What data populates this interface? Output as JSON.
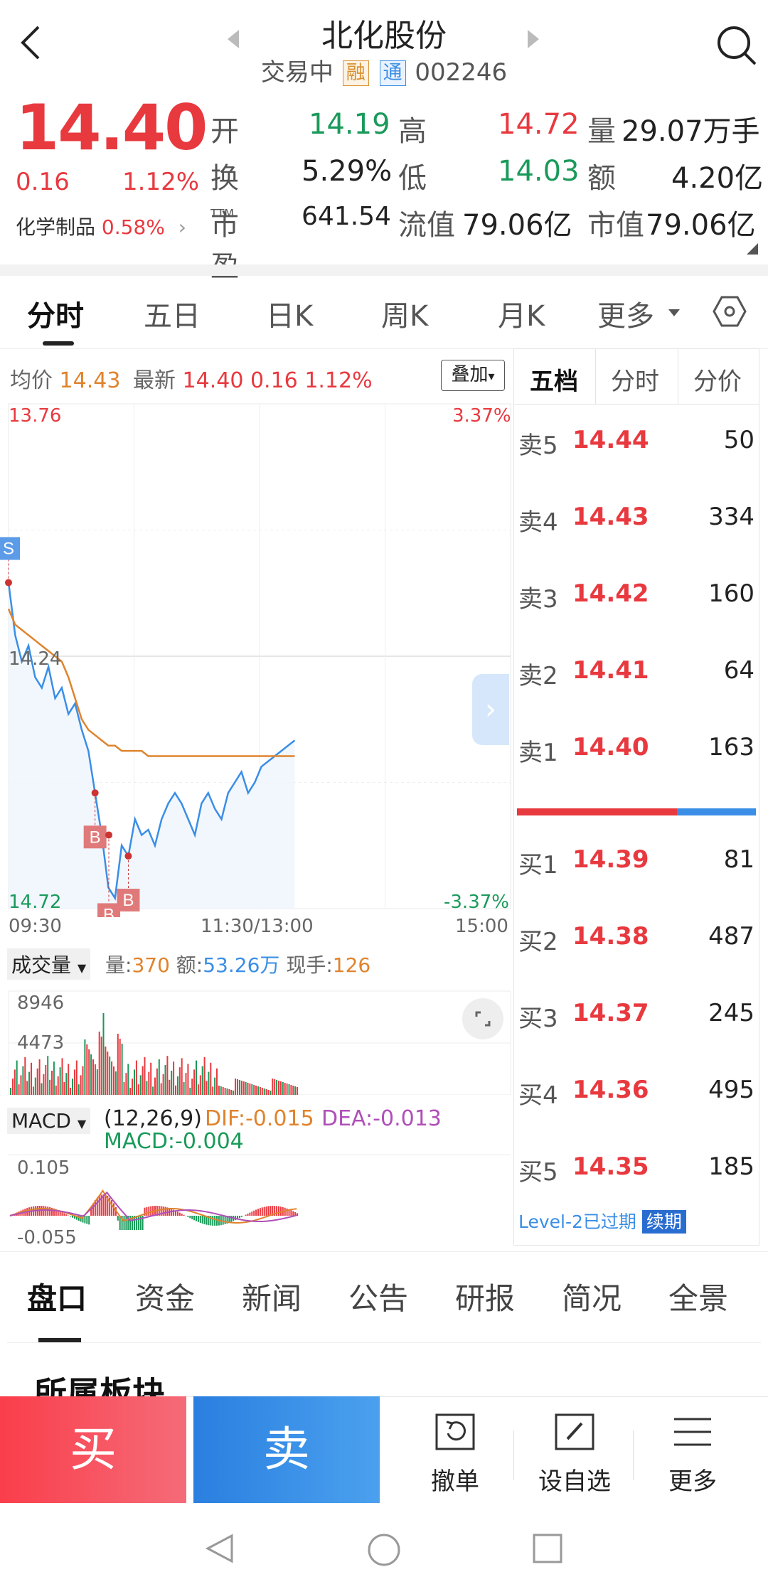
{
  "header": {
    "title": "北化股份",
    "status": "交易中",
    "tag1": "融",
    "tag2": "通",
    "code": "002246"
  },
  "quote": {
    "price": "14.40",
    "change": "0.16",
    "change_pct": "1.12%",
    "sector": "化学制品",
    "sector_pct": "0.58%",
    "open_label": "开",
    "open": "14.19",
    "high_label": "高",
    "high": "14.72",
    "vol_label": "量",
    "vol": "29.07万手",
    "turn_label": "换",
    "turn": "5.29%",
    "low_label": "低",
    "low": "14.03",
    "amt_label": "额",
    "amt": "4.20亿",
    "pe_label": "市盈",
    "pe_sup": "TTM",
    "pe": "641.54",
    "float_label": "流值",
    "float": "79.06亿",
    "cap_label": "市值",
    "cap": "79.06亿"
  },
  "tabs": [
    "分时",
    "五日",
    "日K",
    "周K",
    "月K",
    "更多"
  ],
  "chart_info": {
    "avg_label": "均价",
    "avg": "14.43",
    "last_label": "最新",
    "last": "14.40",
    "chg": "0.16",
    "pct": "1.12%",
    "overlay": "叠加"
  },
  "orderbook": {
    "tabs": [
      "五档",
      "分时",
      "分价"
    ],
    "sells": [
      {
        "label": "卖5",
        "price": "14.44",
        "qty": "50"
      },
      {
        "label": "卖4",
        "price": "14.43",
        "qty": "334"
      },
      {
        "label": "卖3",
        "price": "14.42",
        "qty": "160"
      },
      {
        "label": "卖2",
        "price": "14.41",
        "qty": "64"
      },
      {
        "label": "卖1",
        "price": "14.40",
        "qty": "163"
      }
    ],
    "buys": [
      {
        "label": "买1",
        "price": "14.39",
        "qty": "81"
      },
      {
        "label": "买2",
        "price": "14.38",
        "qty": "487"
      },
      {
        "label": "买3",
        "price": "14.37",
        "qty": "245"
      },
      {
        "label": "买4",
        "price": "14.36",
        "qty": "495"
      },
      {
        "label": "买5",
        "price": "14.35",
        "qty": "185"
      }
    ],
    "buy_ratio": 0.67,
    "level2": "Level-2已过期",
    "renew": "续期"
  },
  "vol_info": {
    "select": "成交量",
    "vol_label": "量:",
    "vol": "370",
    "amt_label": "额:",
    "amt": "53.26万",
    "hand_label": "现手:",
    "hand": "126",
    "max": "8946",
    "mid": "4473"
  },
  "macd_info": {
    "select": "MACD",
    "params": "(12,26,9)",
    "dif": "DIF:-0.015",
    "dea": "DEA:-0.013",
    "macd": "MACD:-0.004",
    "max": "0.105",
    "min": "-0.055"
  },
  "bottom_tabs": [
    "盘口",
    "资金",
    "新闻",
    "公告",
    "研报",
    "简况",
    "全景"
  ],
  "section_title": "所属板块",
  "actions": {
    "buy": "买",
    "sell": "卖",
    "cancel": "撤单",
    "watch": "设自选",
    "more": "更多"
  },
  "colors": {
    "red": "#e8393f",
    "green": "#1a9a5a",
    "blue": "#3a8ee6",
    "orange": "#e0832d"
  },
  "chart_data": {
    "type": "line",
    "title": "",
    "x_labels": [
      "09:30",
      "11:30/13:00",
      "15:00"
    ],
    "ylim": [
      13.76,
      14.72
    ],
    "y_mid": "14.24",
    "pct_top": "3.37%",
    "pct_bottom": "-3.37%",
    "price": [
      14.1,
      14.2,
      14.25,
      14.22,
      14.28,
      14.3,
      14.26,
      14.32,
      14.3,
      14.35,
      14.33,
      14.38,
      14.42,
      14.5,
      14.58,
      14.68,
      14.7,
      14.6,
      14.62,
      14.55,
      14.58,
      14.57,
      14.6,
      14.55,
      14.52,
      14.5,
      14.52,
      14.55,
      14.58,
      14.52,
      14.5,
      14.53,
      14.55,
      14.5,
      14.48,
      14.46,
      14.5,
      14.48,
      14.45,
      14.44,
      14.43,
      14.42,
      14.41,
      14.4
    ],
    "avg": [
      14.15,
      14.18,
      14.19,
      14.2,
      14.21,
      14.22,
      14.23,
      14.24,
      14.25,
      14.28,
      14.32,
      14.36,
      14.38,
      14.39,
      14.4,
      14.41,
      14.41,
      14.42,
      14.42,
      14.42,
      14.42,
      14.43,
      14.43,
      14.43,
      14.43,
      14.43,
      14.43,
      14.43,
      14.43,
      14.43,
      14.43,
      14.43,
      14.43,
      14.43,
      14.43,
      14.43,
      14.43,
      14.43,
      14.43,
      14.43,
      14.43,
      14.43,
      14.43,
      14.43
    ]
  },
  "markers": [
    {
      "text": "S"
    },
    {
      "text": "B"
    },
    {
      "text": "B"
    },
    {
      "text": "B"
    }
  ],
  "sys_nav": [
    "back",
    "home",
    "recent"
  ]
}
